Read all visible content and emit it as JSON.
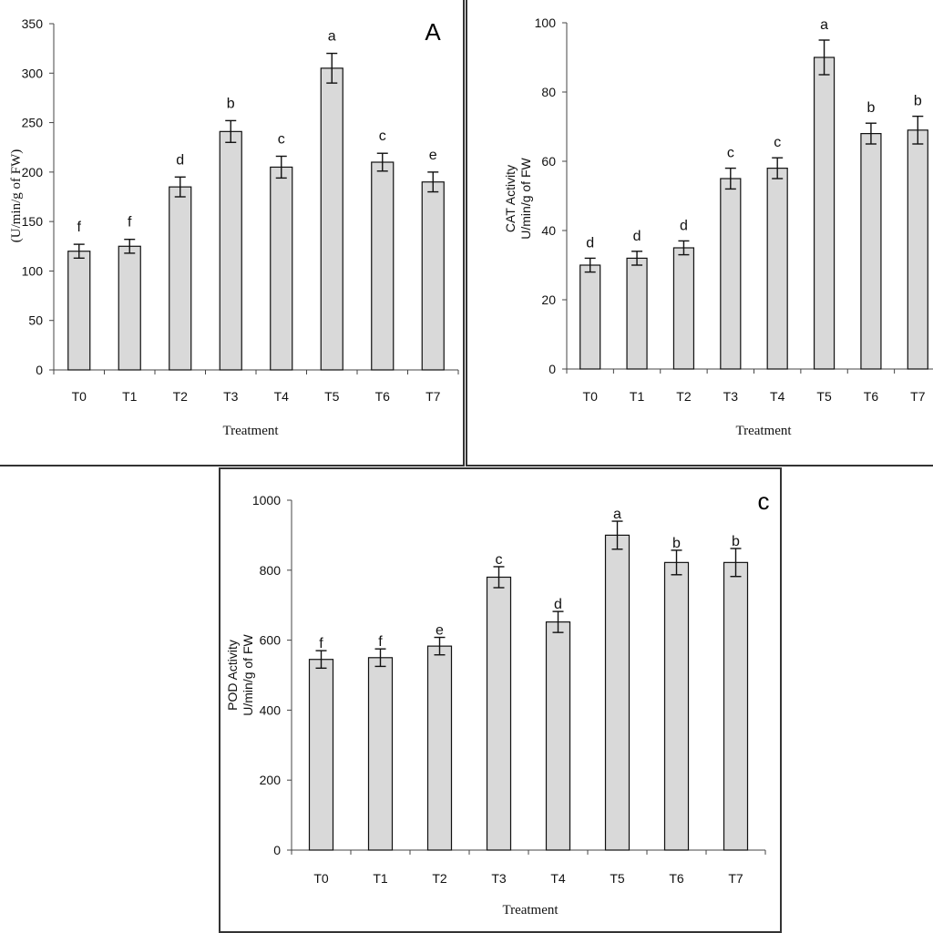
{
  "chart_data": [
    {
      "type": "bar",
      "panel_label": "A",
      "categories": [
        "T0",
        "T1",
        "T2",
        "T3",
        "T4",
        "T5",
        "T6",
        "T7"
      ],
      "values": [
        120,
        125,
        185,
        241,
        205,
        305,
        210,
        190
      ],
      "errors": [
        7,
        7,
        10,
        11,
        11,
        15,
        9,
        10
      ],
      "letters": [
        "f",
        "f",
        "d",
        "b",
        "c",
        "a",
        "c",
        "e"
      ],
      "ylim": [
        0,
        350
      ],
      "yticks": [
        "0",
        "50",
        "100",
        "150",
        "200",
        "250",
        "300",
        "350"
      ],
      "ylabel": "(U/min/g of FW)",
      "xlabel": "Treatment",
      "grid": false,
      "bar_color": "#d9d9d9"
    },
    {
      "type": "bar",
      "panel_label": "",
      "categories": [
        "T0",
        "T1",
        "T2",
        "T3",
        "T4",
        "T5",
        "T6",
        "T7"
      ],
      "values": [
        30,
        32,
        35,
        55,
        58,
        90,
        68,
        69
      ],
      "errors": [
        2,
        2,
        2,
        3,
        3,
        5,
        3,
        4
      ],
      "letters": [
        "d",
        "d",
        "d",
        "c",
        "c",
        "a",
        "b",
        "b"
      ],
      "ylim": [
        0,
        100
      ],
      "yticks": [
        "0",
        "20",
        "40",
        "60",
        "80",
        "100"
      ],
      "ylabel": "CAT Activity",
      "ylabel2": "U/min/g of FW",
      "xlabel": "Treatment",
      "grid": false,
      "bar_color": "#d9d9d9"
    },
    {
      "type": "bar",
      "panel_label": "c",
      "categories": [
        "T0",
        "T1",
        "T2",
        "T3",
        "T4",
        "T5",
        "T6",
        "T7"
      ],
      "values": [
        545,
        550,
        583,
        780,
        652,
        900,
        822,
        822
      ],
      "errors": [
        25,
        25,
        25,
        30,
        30,
        40,
        35,
        40
      ],
      "letters": [
        "f",
        "f",
        "e",
        "c",
        "d",
        "a",
        "b",
        "b"
      ],
      "ylim": [
        0,
        1000
      ],
      "yticks": [
        "0",
        "200",
        "400",
        "600",
        "800",
        "1000"
      ],
      "ylabel": "POD Activity",
      "ylabel2": "U/min/g of FW",
      "xlabel": "Treatment",
      "grid": false,
      "bar_color": "#d9d9d9"
    }
  ]
}
